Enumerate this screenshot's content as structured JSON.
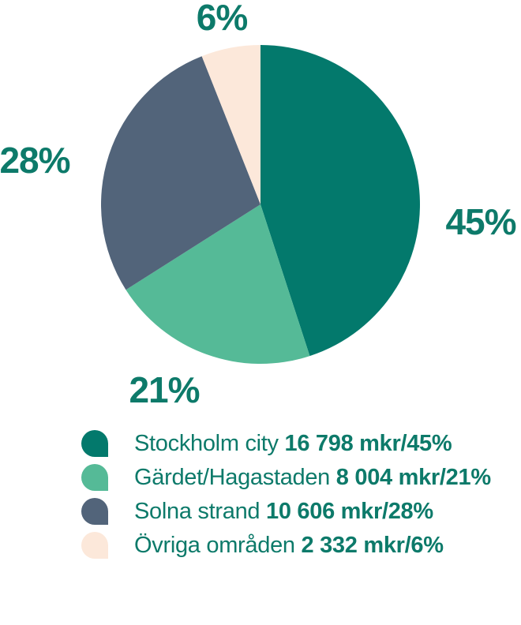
{
  "chart_data": {
    "type": "pie",
    "title": "",
    "unit": "mkr",
    "start_angle_deg": 0,
    "direction": "clockwise",
    "legend_position": "bottom",
    "text_color": "#0d7a6a",
    "background_color": "#ffffff",
    "slices": [
      {
        "label": "Stockholm city",
        "value": 16798,
        "pct": 45,
        "pct_label": "45%",
        "value_text": "16 798 mkr/45%",
        "color": "#03796c"
      },
      {
        "label": "Gärdet/Hagastaden",
        "value": 8004,
        "pct": 21,
        "pct_label": "21%",
        "value_text": "8 004 mkr/21%",
        "color": "#55ba97"
      },
      {
        "label": "Solna strand",
        "value": 10606,
        "pct": 28,
        "pct_label": "28%",
        "value_text": "10 606 mkr/28%",
        "color": "#52647a"
      },
      {
        "label": "Övriga områden",
        "value": 2332,
        "pct": 6,
        "pct_label": "6%",
        "value_text": "2 332 mkr/6%",
        "color": "#fce8da"
      }
    ]
  }
}
